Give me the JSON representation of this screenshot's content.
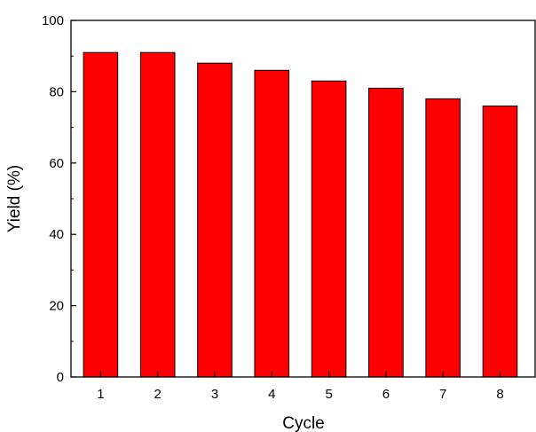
{
  "chart_data": {
    "type": "bar",
    "title": "",
    "xlabel": "Cycle",
    "ylabel": "Yield (%)",
    "categories": [
      "1",
      "2",
      "3",
      "4",
      "5",
      "6",
      "7",
      "8"
    ],
    "values": [
      91,
      91,
      88,
      86,
      83,
      81,
      78,
      76
    ],
    "ylim": [
      0,
      100
    ],
    "yticks": [
      0,
      20,
      40,
      60,
      80,
      100
    ],
    "yticks_minor": [
      10,
      30,
      50,
      70,
      90
    ],
    "grid": false,
    "legend": "none",
    "bar_color": "#ff0000",
    "bar_edge_color": "#000000"
  }
}
